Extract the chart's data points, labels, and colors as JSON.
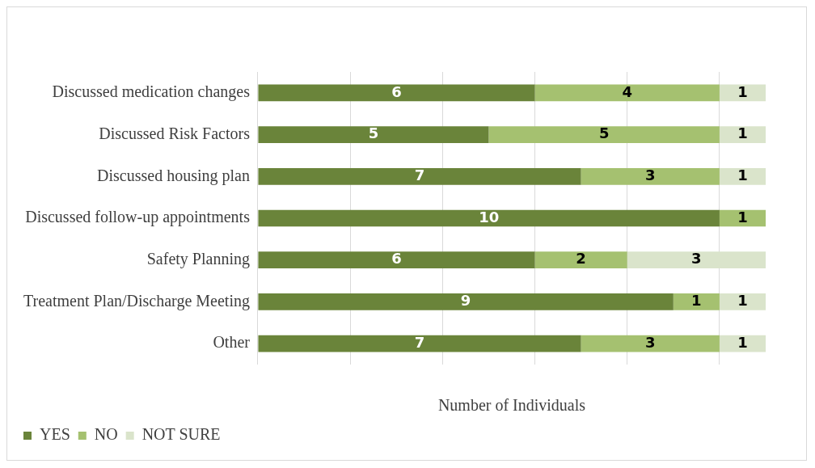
{
  "chart_data": {
    "type": "bar",
    "orientation": "horizontal",
    "stacked": true,
    "xlabel": "Number of Individuals",
    "categories": [
      "Discussed medication changes",
      "Discussed Risk Factors",
      "Discussed housing plan",
      "Discussed follow-up appointments",
      "Safety Planning",
      "Treatment Plan/Discharge Meeting",
      "Other"
    ],
    "series": [
      {
        "name": "YES",
        "color": "#6a843a",
        "values": [
          6,
          5,
          7,
          10,
          6,
          9,
          7
        ]
      },
      {
        "name": "NO",
        "color": "#a5c170",
        "values": [
          4,
          5,
          3,
          1,
          2,
          1,
          3
        ]
      },
      {
        "name": "NOT SURE",
        "color": "#dae4cb",
        "values": [
          1,
          1,
          1,
          null,
          3,
          1,
          1
        ]
      }
    ],
    "xlim": [
      0,
      11
    ],
    "xticks": [
      {
        "value": 0,
        "label": null
      },
      {
        "value": 2,
        "label": null
      },
      {
        "value": 4,
        "label": null
      },
      {
        "value": 6,
        "label": null
      },
      {
        "value": 8,
        "label": null
      },
      {
        "value": 10,
        "label": null
      }
    ],
    "grid": "x",
    "tick_labels": "y",
    "legend": "bottom left",
    "data_labels": true
  }
}
